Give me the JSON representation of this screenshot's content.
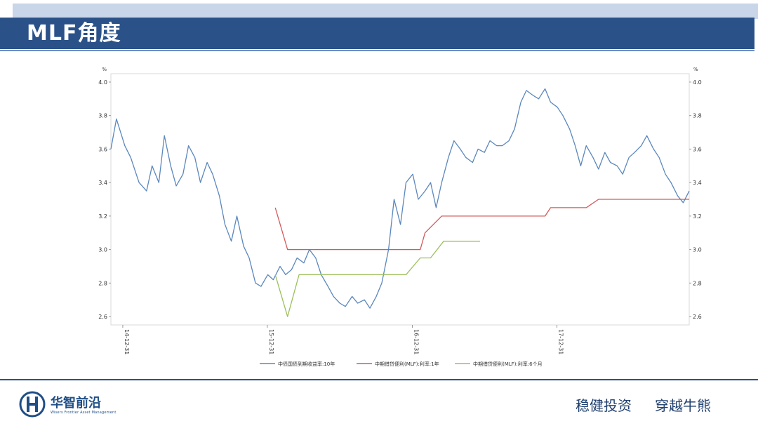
{
  "header": {
    "title": "MLF角度"
  },
  "footer": {
    "brand_name": "华智前沿",
    "brand_sub": "Wisers Frontier Asset Management",
    "slogan_1": "稳健投资",
    "slogan_2": "穿越牛熊"
  },
  "colors": {
    "header": "#2a5289",
    "series_10y": "#5b87bd",
    "series_mlf_1y": "#d45a5a",
    "series_mlf_6m": "#9cc05a"
  },
  "chart_data": {
    "type": "line",
    "left_unit": "%",
    "right_unit": "%",
    "ylim": [
      2.55,
      4.05
    ],
    "yticks": [
      "4.0",
      "3.8",
      "3.6",
      "3.4",
      "3.2",
      "3.0",
      "2.8",
      "2.6"
    ],
    "xlim": [
      "2014-12-01",
      "2018-11-30"
    ],
    "xticks": [
      {
        "date": "2014-12-31",
        "label": "14-12-31"
      },
      {
        "date": "2015-12-31",
        "label": "15-12-31"
      },
      {
        "date": "2016-12-31",
        "label": "16-12-31"
      },
      {
        "date": "2017-12-31",
        "label": "17-12-31"
      }
    ],
    "legend_position": "bottom",
    "series": [
      {
        "name": "中债国债到期收益率:10年",
        "x": [
          "2014-12-01",
          "2014-12-15",
          "2015-01-05",
          "2015-01-20",
          "2015-02-10",
          "2015-03-01",
          "2015-03-15",
          "2015-04-01",
          "2015-04-15",
          "2015-05-01",
          "2015-05-15",
          "2015-06-01",
          "2015-06-15",
          "2015-07-01",
          "2015-07-15",
          "2015-08-01",
          "2015-08-15",
          "2015-09-01",
          "2015-09-15",
          "2015-10-01",
          "2015-10-15",
          "2015-11-01",
          "2015-11-15",
          "2015-12-01",
          "2015-12-15",
          "2016-01-01",
          "2016-01-15",
          "2016-02-01",
          "2016-02-15",
          "2016-03-01",
          "2016-03-15",
          "2016-04-01",
          "2016-04-15",
          "2016-05-01",
          "2016-05-15",
          "2016-06-01",
          "2016-06-15",
          "2016-07-01",
          "2016-07-15",
          "2016-08-01",
          "2016-08-15",
          "2016-09-01",
          "2016-09-15",
          "2016-10-01",
          "2016-10-15",
          "2016-11-01",
          "2016-11-15",
          "2016-12-01",
          "2016-12-15",
          "2017-01-01",
          "2017-01-15",
          "2017-02-01",
          "2017-02-15",
          "2017-03-01",
          "2017-03-15",
          "2017-04-01",
          "2017-04-15",
          "2017-05-01",
          "2017-05-15",
          "2017-06-01",
          "2017-06-15",
          "2017-07-01",
          "2017-07-15",
          "2017-08-01",
          "2017-08-15",
          "2017-09-01",
          "2017-09-15",
          "2017-10-01",
          "2017-10-15",
          "2017-11-01",
          "2017-11-15",
          "2017-12-01",
          "2017-12-15",
          "2018-01-01",
          "2018-01-15",
          "2018-02-01",
          "2018-02-15",
          "2018-03-01",
          "2018-03-15",
          "2018-04-01",
          "2018-04-15",
          "2018-05-01",
          "2018-05-15",
          "2018-06-01",
          "2018-06-15",
          "2018-07-01",
          "2018-07-15",
          "2018-08-01",
          "2018-08-15",
          "2018-09-01",
          "2018-09-15",
          "2018-10-01",
          "2018-10-15",
          "2018-11-01",
          "2018-11-15",
          "2018-11-30"
        ],
        "values": [
          3.6,
          3.78,
          3.62,
          3.55,
          3.4,
          3.35,
          3.5,
          3.4,
          3.68,
          3.5,
          3.38,
          3.45,
          3.62,
          3.55,
          3.4,
          3.52,
          3.45,
          3.32,
          3.15,
          3.05,
          3.2,
          3.02,
          2.95,
          2.8,
          2.78,
          2.85,
          2.82,
          2.9,
          2.85,
          2.88,
          2.95,
          2.92,
          3.0,
          2.95,
          2.85,
          2.78,
          2.72,
          2.68,
          2.66,
          2.72,
          2.68,
          2.7,
          2.65,
          2.72,
          2.8,
          3.0,
          3.3,
          3.15,
          3.4,
          3.45,
          3.3,
          3.35,
          3.4,
          3.25,
          3.4,
          3.55,
          3.65,
          3.6,
          3.55,
          3.52,
          3.6,
          3.58,
          3.65,
          3.62,
          3.62,
          3.65,
          3.72,
          3.88,
          3.95,
          3.92,
          3.9,
          3.96,
          3.88,
          3.85,
          3.8,
          3.72,
          3.62,
          3.5,
          3.62,
          3.55,
          3.48,
          3.58,
          3.52,
          3.5,
          3.45,
          3.55,
          3.58,
          3.62,
          3.68,
          3.6,
          3.55,
          3.45,
          3.4,
          3.32,
          3.28,
          3.35
        ]
      },
      {
        "name": "中期借贷便利(MLF):利率:1年",
        "x": [
          "2016-01-20",
          "2016-02-20",
          "2016-12-15",
          "2017-01-20",
          "2017-02-01",
          "2017-03-15",
          "2017-12-01",
          "2017-12-15",
          "2018-03-15",
          "2018-04-15",
          "2018-11-30"
        ],
        "values": [
          3.25,
          3.0,
          3.0,
          3.0,
          3.1,
          3.2,
          3.2,
          3.25,
          3.25,
          3.3,
          3.3
        ]
      },
      {
        "name": "中期借贷便利(MLF):利率:6个月",
        "x": [
          "2016-01-20",
          "2016-02-20",
          "2016-03-20",
          "2016-12-15",
          "2017-01-20",
          "2017-02-15",
          "2017-03-20",
          "2017-06-20"
        ],
        "values": [
          2.85,
          2.6,
          2.85,
          2.85,
          2.95,
          2.95,
          3.05,
          3.05
        ]
      }
    ]
  }
}
